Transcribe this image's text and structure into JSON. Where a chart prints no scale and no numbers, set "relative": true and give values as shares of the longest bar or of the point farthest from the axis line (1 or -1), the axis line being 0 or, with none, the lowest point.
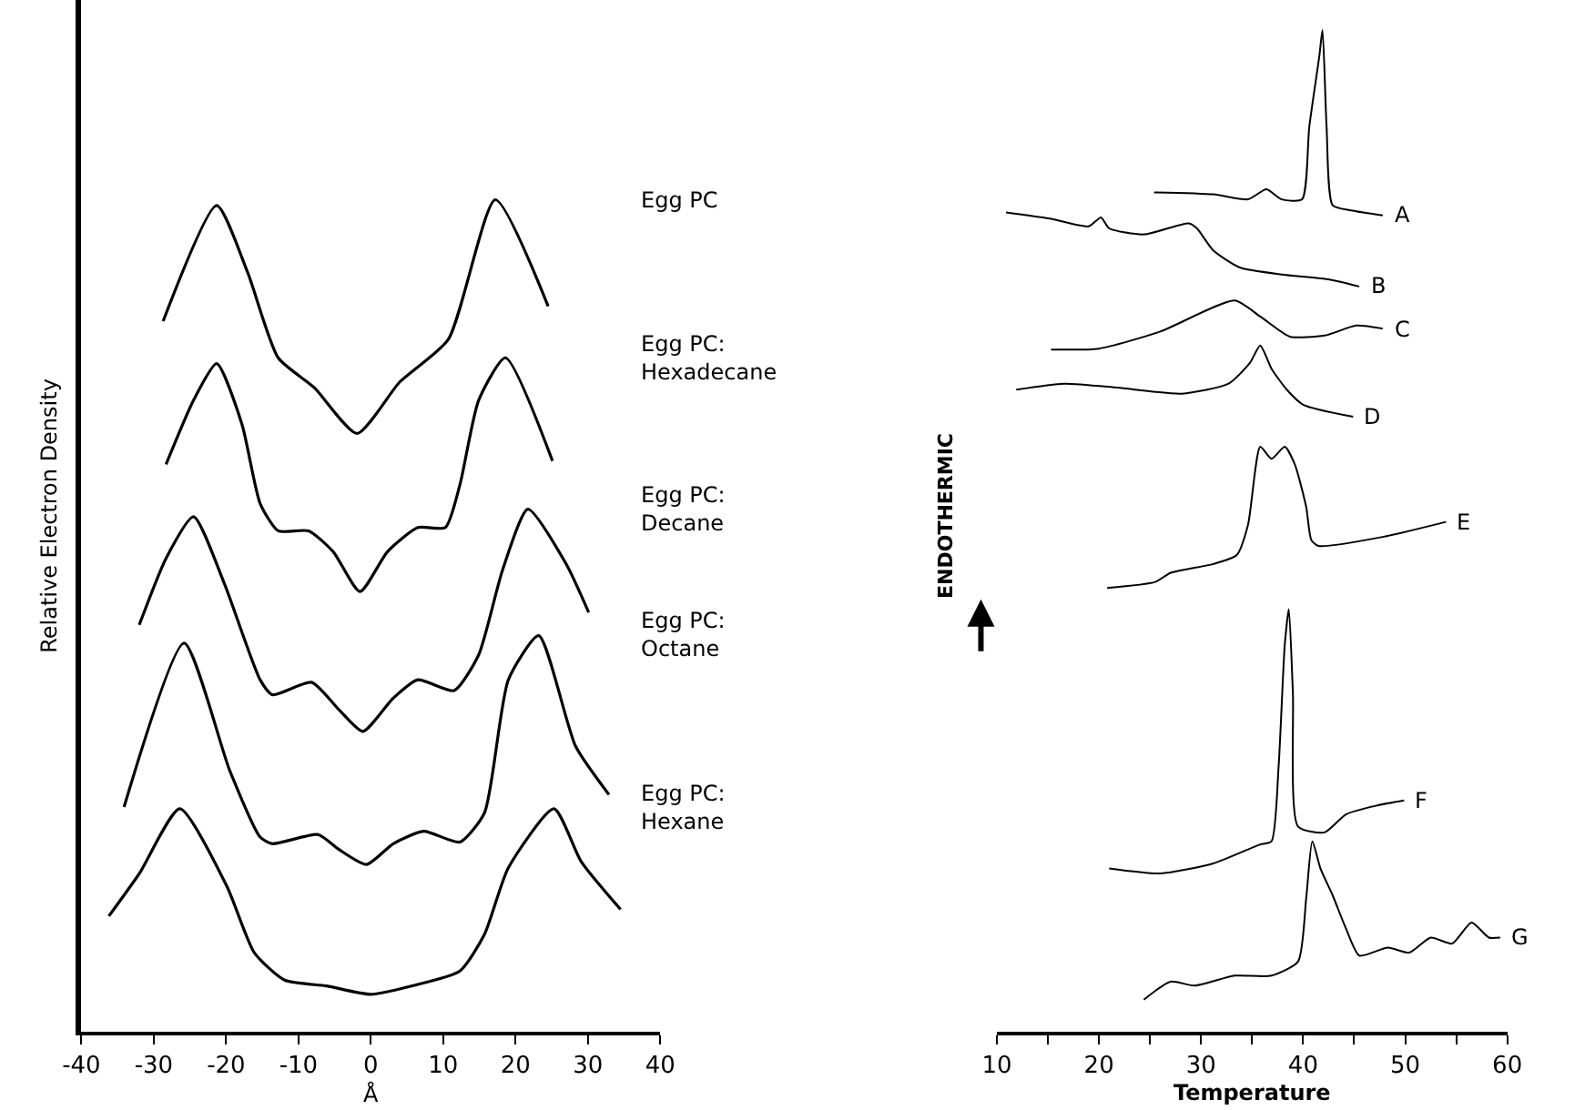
{
  "chart_data": [
    {
      "type": "line",
      "relative": true,
      "xlabel": "Å",
      "ylabel": "Relative Electron Density",
      "xlim": [
        -40,
        40
      ],
      "xticks": [
        -40,
        -30,
        -20,
        -10,
        0,
        10,
        20,
        30,
        40
      ],
      "marker": "none",
      "line_style": "solid",
      "series": [
        {
          "name": "Egg PC",
          "color": "#000000",
          "x": [
            -28.7,
            -21.3,
            -17.0,
            -12.8,
            -7.8,
            -1.9,
            4.0,
            10.7,
            17.2,
            24.5
          ],
          "values": [
            0.854,
            0.993,
            0.912,
            0.81,
            0.774,
            0.719,
            0.781,
            0.832,
            1.0,
            0.872
          ]
        },
        {
          "name": "Egg PC:\nHexadecane",
          "color": "#000000",
          "x": [
            -28.3,
            -24.5,
            -21.3,
            -17.8,
            -15.3,
            -12.8,
            -8.6,
            -5.2,
            -1.5,
            2.3,
            6.5,
            10.3,
            12.3,
            14.9,
            18.6,
            25.1
          ],
          "values": [
            0.682,
            0.759,
            0.803,
            0.73,
            0.635,
            0.602,
            0.602,
            0.577,
            0.529,
            0.577,
            0.606,
            0.606,
            0.657,
            0.759,
            0.81,
            0.686
          ]
        },
        {
          "name": "Egg PC:\nDecane",
          "color": "#000000",
          "x": [
            -32.0,
            -28.3,
            -24.5,
            -20.3,
            -15.3,
            -13.6,
            -8.2,
            -4.4,
            -1.1,
            3.1,
            6.5,
            11.5,
            14.9,
            18.2,
            21.7,
            27.0,
            30.1
          ],
          "values": [
            0.489,
            0.569,
            0.619,
            0.54,
            0.423,
            0.405,
            0.42,
            0.387,
            0.361,
            0.401,
            0.423,
            0.41,
            0.453,
            0.555,
            0.628,
            0.562,
            0.504
          ]
        },
        {
          "name": "Egg PC:\nOctane",
          "color": "#000000",
          "x": [
            -34.1,
            -25.8,
            -19.5,
            -15.3,
            -13.6,
            -7.3,
            -4.4,
            -0.6,
            3.1,
            7.3,
            12.3,
            15.7,
            19.0,
            23.2,
            28.3,
            32.9
          ],
          "values": [
            0.27,
            0.467,
            0.314,
            0.234,
            0.226,
            0.237,
            0.219,
            0.201,
            0.226,
            0.241,
            0.228,
            0.263,
            0.423,
            0.476,
            0.343,
            0.285
          ]
        },
        {
          "name": "Egg PC:\nHexane",
          "color": "#000000",
          "x": [
            -36.2,
            -32.0,
            -26.4,
            -19.9,
            -16.1,
            -11.9,
            -6.1,
            0.0,
            5.6,
            12.3,
            15.7,
            19.0,
            25.3,
            29.1,
            34.5
          ],
          "values": [
            0.139,
            0.19,
            0.268,
            0.175,
            0.095,
            0.062,
            0.055,
            0.045,
            0.055,
            0.073,
            0.117,
            0.197,
            0.268,
            0.204,
            0.147
          ]
        }
      ]
    },
    {
      "type": "line",
      "relative": true,
      "xlabel": "Temperature",
      "ylabel": "ENDOTHERMIC",
      "xlim": [
        10,
        60
      ],
      "xticks": [
        10,
        {
          "value": 15,
          "label": null
        },
        20,
        {
          "value": 25,
          "label": null
        },
        30,
        {
          "value": 35,
          "label": null
        },
        40,
        {
          "value": 45,
          "label": null
        },
        50,
        {
          "value": 55,
          "label": null
        },
        60
      ],
      "marker": "none",
      "line_style": "solid",
      "series": [
        {
          "name": "A",
          "color": "#000000",
          "x": [
            25.4,
            31.2,
            34.6,
            36.4,
            37.9,
            39.9,
            40.6,
            41.6,
            41.9,
            42.3,
            42.9,
            44.7,
            47.8
          ],
          "values": [
            0.838,
            0.836,
            0.831,
            0.841,
            0.831,
            0.831,
            0.903,
            0.975,
            1.0,
            0.903,
            0.825,
            0.82,
            0.815
          ]
        },
        {
          "name": "B",
          "color": "#000000",
          "x": [
            10.9,
            15.1,
            19.0,
            20.2,
            21.0,
            24.4,
            28.8,
            29.6,
            31.2,
            33.8,
            37.9,
            42.6,
            45.5
          ],
          "values": [
            0.818,
            0.812,
            0.804,
            0.813,
            0.802,
            0.796,
            0.807,
            0.802,
            0.78,
            0.763,
            0.756,
            0.751,
            0.744
          ]
        },
        {
          "name": "C",
          "color": "#000000",
          "x": [
            15.3,
            20.0,
            26.0,
            33.3,
            35.8,
            38.7,
            42.1,
            45.2,
            47.8
          ],
          "values": [
            0.681,
            0.682,
            0.699,
            0.73,
            0.714,
            0.694,
            0.695,
            0.705,
            0.702
          ]
        },
        {
          "name": "D",
          "color": "#000000",
          "x": [
            11.9,
            16.6,
            21.8,
            28.1,
            32.7,
            34.8,
            35.8,
            36.9,
            38.4,
            40.0,
            44.9
          ],
          "values": [
            0.641,
            0.647,
            0.643,
            0.637,
            0.647,
            0.668,
            0.685,
            0.662,
            0.641,
            0.626,
            0.614
          ]
        },
        {
          "name": "E",
          "color": "#000000",
          "x": [
            20.8,
            25.5,
            27.0,
            31.2,
            33.5,
            34.6,
            35.8,
            36.9,
            38.2,
            39.2,
            40.3,
            40.8,
            41.5,
            47.8,
            54.0
          ],
          "values": [
            0.443,
            0.449,
            0.458,
            0.467,
            0.476,
            0.506,
            0.584,
            0.572,
            0.584,
            0.566,
            0.524,
            0.491,
            0.485,
            0.494,
            0.509
          ]
        },
        {
          "name": "F",
          "color": "#000000",
          "x": [
            21.0,
            26.0,
            31.2,
            35.8,
            36.9,
            37.6,
            38.2,
            38.6,
            39.0,
            39.5,
            42.1,
            44.2,
            47.3,
            49.9
          ],
          "values": [
            0.163,
            0.158,
            0.168,
            0.187,
            0.19,
            0.265,
            0.386,
            0.422,
            0.338,
            0.205,
            0.199,
            0.217,
            0.226,
            0.231
          ]
        },
        {
          "name": "G",
          "color": "#000000",
          "x": [
            24.4,
            27.0,
            29.4,
            33.3,
            36.9,
            39.5,
            40.3,
            40.9,
            41.7,
            42.9,
            44.2,
            45.5,
            48.3,
            50.4,
            52.5,
            54.6,
            56.5,
            58.2,
            59.3
          ],
          "values": [
            0.032,
            0.05,
            0.046,
            0.056,
            0.056,
            0.07,
            0.133,
            0.19,
            0.163,
            0.136,
            0.103,
            0.076,
            0.084,
            0.079,
            0.094,
            0.088,
            0.109,
            0.094,
            0.094
          ]
        }
      ]
    }
  ]
}
